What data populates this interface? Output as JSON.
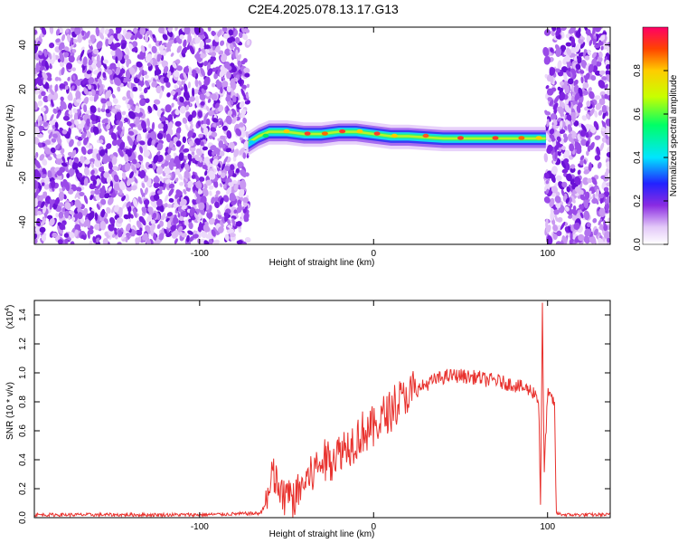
{
  "title": "C2E4.2025.078.13.17.G13",
  "chart_data": [
    {
      "type": "heatmap",
      "xlabel": "Height of straight line (km)",
      "ylabel": "Frequency (Hz)",
      "xlim": [
        -195,
        136
      ],
      "ylim": [
        -50,
        48
      ],
      "xticks": [
        -100,
        0,
        100
      ],
      "yticks": [
        -40,
        -20,
        0,
        20,
        40
      ],
      "noise_regions": [
        [
          -195,
          -72
        ],
        [
          99,
          136
        ]
      ],
      "signal_trace": {
        "x": [
          -72,
          -66,
          -60,
          -50,
          -40,
          -30,
          -20,
          -10,
          0,
          10,
          20,
          40,
          60,
          80,
          90,
          99
        ],
        "y": [
          -4,
          -1,
          1,
          1,
          0,
          0,
          1,
          1,
          0,
          -1,
          -1,
          -2,
          -2,
          -2,
          -2,
          -2
        ]
      },
      "colorbar": {
        "label": "Normalized spectral amplitude",
        "range": [
          0.0,
          1.0
        ],
        "ticks": [
          0.0,
          0.2,
          0.4,
          0.6,
          0.8
        ]
      },
      "grid": false
    },
    {
      "type": "line",
      "xlabel": "Height of straight line (km)",
      "ylabel": "SNR (10 * v/v)",
      "scale_label": "(x10",
      "scale_exp": "4",
      "scale_close": ")",
      "xlim": [
        -195,
        136
      ],
      "ylim": [
        0,
        1.5
      ],
      "xticks": [
        -100,
        0,
        100
      ],
      "yticks": [
        0.0,
        0.2,
        0.4,
        0.6,
        0.8,
        1.0,
        1.2,
        1.4
      ],
      "series": [
        {
          "color": "#e8322e",
          "x": [
            -195,
            -100,
            -65,
            -60,
            -58,
            -55,
            -52,
            -50,
            -48,
            -45,
            -40,
            -35,
            -30,
            -25,
            -20,
            -15,
            -10,
            -5,
            0,
            5,
            10,
            15,
            20,
            25,
            30,
            35,
            40,
            45,
            50,
            55,
            60,
            65,
            70,
            75,
            80,
            85,
            90,
            93,
            95,
            96,
            97,
            98,
            100,
            102,
            104,
            105,
            110,
            136
          ],
          "y": [
            0.02,
            0.02,
            0.03,
            0.15,
            0.3,
            0.22,
            0.12,
            0.18,
            0.12,
            0.15,
            0.24,
            0.32,
            0.38,
            0.42,
            0.45,
            0.5,
            0.55,
            0.6,
            0.62,
            0.68,
            0.75,
            0.8,
            0.85,
            0.88,
            0.92,
            0.95,
            0.97,
            0.98,
            0.98,
            0.97,
            0.97,
            0.95,
            0.95,
            0.93,
            0.92,
            0.9,
            0.88,
            0.86,
            0.8,
            0.05,
            1.48,
            0.3,
            0.85,
            0.82,
            0.8,
            0.03,
            0.02,
            0.02
          ]
        }
      ],
      "grid": false
    }
  ]
}
